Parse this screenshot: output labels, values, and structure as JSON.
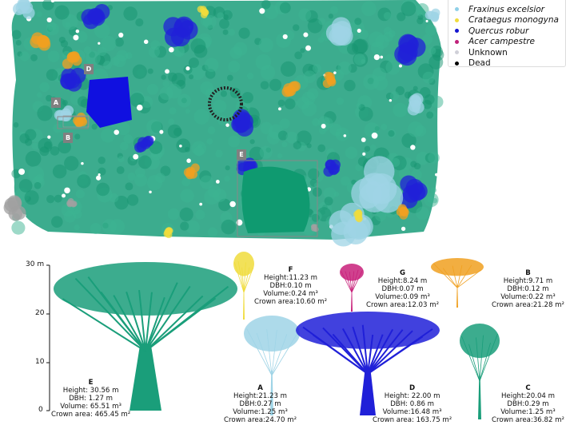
{
  "legend": {
    "items": [
      {
        "label": "Fraxinus excelsior",
        "color": "#8fd0e8",
        "italic": true
      },
      {
        "label": "Crataegus monogyna",
        "color": "#f0dc3c",
        "italic": true
      },
      {
        "label": "Quercus robur",
        "color": "#1515d0",
        "italic": true
      },
      {
        "label": "Acer campestre",
        "color": "#c0207a",
        "italic": true
      },
      {
        "label": "Unknown",
        "color": "#d0d0d8",
        "italic": false
      },
      {
        "label": "Dead",
        "color": "#000000",
        "italic": false
      }
    ]
  },
  "colors": {
    "main_species": "#1a9e7a",
    "ash": "#9fd4e6",
    "hawthorn": "#f0dc3c",
    "oak": "#2020d8",
    "maple": "#c8207a",
    "orange": "#f0a020",
    "unknown": "#a0a0a0",
    "dead": "#222222"
  },
  "map_tags": [
    "D",
    "A",
    "B",
    "E"
  ],
  "axis": {
    "ticks": [
      "30 m",
      "20",
      "10",
      "0"
    ],
    "ticks_values": [
      30,
      20,
      10,
      0
    ]
  },
  "trees": [
    {
      "id": "E",
      "height": "30.56 m",
      "dbh": "1.27 m",
      "volume": "65.51 m³",
      "crown_area": "465.45 m²"
    },
    {
      "id": "F",
      "height": "11.23 m",
      "dbh": "0.10 m",
      "volume": "0.24 m³",
      "crown_area": "10.60 m²"
    },
    {
      "id": "G",
      "height": "8.24 m",
      "dbh": "0.07 m",
      "volume": "0.09 m³",
      "crown_area": "12.03 m²"
    },
    {
      "id": "B",
      "height": "9.71 m",
      "dbh": "0.12 m",
      "volume": "0.22 m³",
      "crown_area": "21.28 m²"
    },
    {
      "id": "A",
      "height": "21.23 m",
      "dbh": "0.27 m",
      "volume": "1.25 m³",
      "crown_area": "24.70 m²"
    },
    {
      "id": "D",
      "height": "22.00 m",
      "dbh": "0.86 m",
      "volume": "16.48 m³",
      "crown_area": "163.75 m²"
    },
    {
      "id": "C",
      "height": "20.04 m",
      "dbh": "0.29 m",
      "volume": "1.25 m³",
      "crown_area": "36.82 m²"
    }
  ],
  "labels": {
    "height": "Height:",
    "dbh": "DBH:",
    "volume": "Volume:",
    "crown_area": "Crown area:"
  }
}
